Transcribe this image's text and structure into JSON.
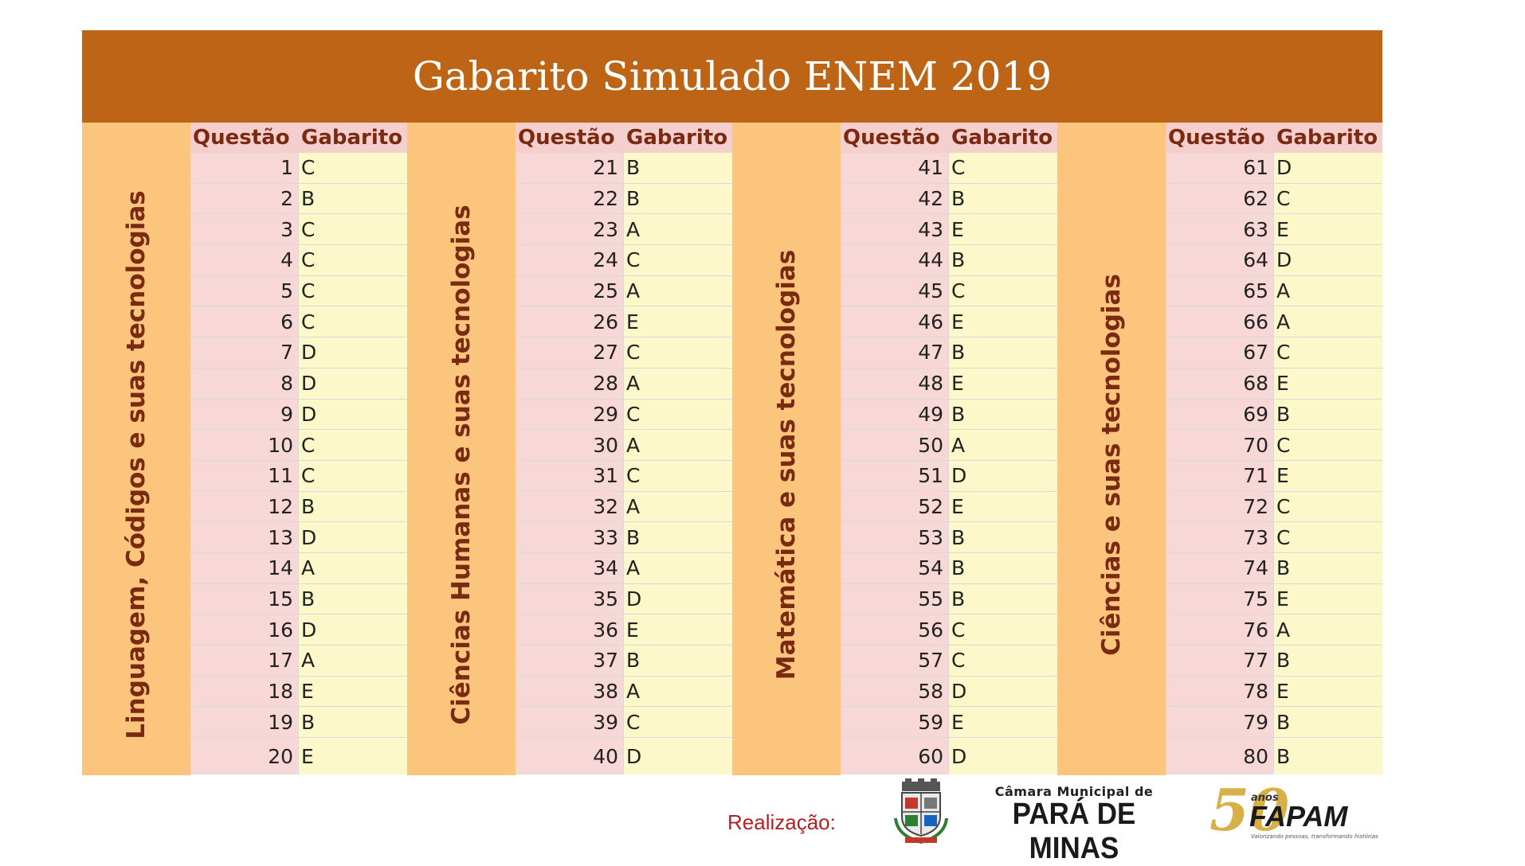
{
  "title": "Gabarito Simulado ENEM 2019",
  "header": {
    "questao": "Questão",
    "gabarito": "Gabarito"
  },
  "areas": [
    {
      "label": "Linguagem, Códigos e suas tecnologias",
      "rows": [
        [
          "1",
          "C"
        ],
        [
          "2",
          "B"
        ],
        [
          "3",
          "C"
        ],
        [
          "4",
          "C"
        ],
        [
          "5",
          "C"
        ],
        [
          "6",
          "C"
        ],
        [
          "7",
          "D"
        ],
        [
          "8",
          "D"
        ],
        [
          "9",
          "D"
        ],
        [
          "10",
          "C"
        ],
        [
          "11",
          "C"
        ],
        [
          "12",
          "B"
        ],
        [
          "13",
          "D"
        ],
        [
          "14",
          "A"
        ],
        [
          "15",
          "B"
        ],
        [
          "16",
          "D"
        ],
        [
          "17",
          "A"
        ],
        [
          "18",
          "E"
        ],
        [
          "19",
          "B"
        ],
        [
          "20",
          "E"
        ]
      ]
    },
    {
      "label": "Ciências Humanas e suas tecnologias",
      "rows": [
        [
          "21",
          "B"
        ],
        [
          "22",
          "B"
        ],
        [
          "23",
          "A"
        ],
        [
          "24",
          "C"
        ],
        [
          "25",
          "A"
        ],
        [
          "26",
          "E"
        ],
        [
          "27",
          "C"
        ],
        [
          "28",
          "A"
        ],
        [
          "29",
          "C"
        ],
        [
          "30",
          "A"
        ],
        [
          "31",
          "C"
        ],
        [
          "32",
          "A"
        ],
        [
          "33",
          "B"
        ],
        [
          "34",
          "A"
        ],
        [
          "35",
          "D"
        ],
        [
          "36",
          "E"
        ],
        [
          "37",
          "B"
        ],
        [
          "38",
          "A"
        ],
        [
          "39",
          "C"
        ],
        [
          "40",
          "D"
        ]
      ]
    },
    {
      "label": "Matemática e suas tecnologias",
      "rows": [
        [
          "41",
          "C"
        ],
        [
          "42",
          "B"
        ],
        [
          "43",
          "E"
        ],
        [
          "44",
          "B"
        ],
        [
          "45",
          "C"
        ],
        [
          "46",
          "E"
        ],
        [
          "47",
          "B"
        ],
        [
          "48",
          "E"
        ],
        [
          "49",
          "B"
        ],
        [
          "50",
          "A"
        ],
        [
          "51",
          "D"
        ],
        [
          "52",
          "E"
        ],
        [
          "53",
          "B"
        ],
        [
          "54",
          "B"
        ],
        [
          "55",
          "B"
        ],
        [
          "56",
          "C"
        ],
        [
          "57",
          "C"
        ],
        [
          "58",
          "D"
        ],
        [
          "59",
          "E"
        ],
        [
          "60",
          "D"
        ]
      ]
    },
    {
      "label": "Ciências e suas tecnologias",
      "rows": [
        [
          "61",
          "D"
        ],
        [
          "62",
          "C"
        ],
        [
          "63",
          "E"
        ],
        [
          "64",
          "D"
        ],
        [
          "65",
          "A"
        ],
        [
          "66",
          "A"
        ],
        [
          "67",
          "C"
        ],
        [
          "68",
          "E"
        ],
        [
          "69",
          "B"
        ],
        [
          "70",
          "C"
        ],
        [
          "71",
          "E"
        ],
        [
          "72",
          "C"
        ],
        [
          "73",
          "C"
        ],
        [
          "74",
          "B"
        ],
        [
          "75",
          "E"
        ],
        [
          "76",
          "A"
        ],
        [
          "77",
          "B"
        ],
        [
          "78",
          "E"
        ],
        [
          "79",
          "B"
        ],
        [
          "80",
          "B"
        ]
      ]
    }
  ],
  "footer": {
    "realizacao": "Realização:",
    "camara_top": "Câmara Municipal de",
    "camara_main": "PARÁ DE MINAS",
    "fapam_num": "50",
    "fapam_anos": "anos",
    "fapam_name": "FAPAM",
    "fapam_tagline": "Valorizando pessoas, transformando histórias"
  }
}
